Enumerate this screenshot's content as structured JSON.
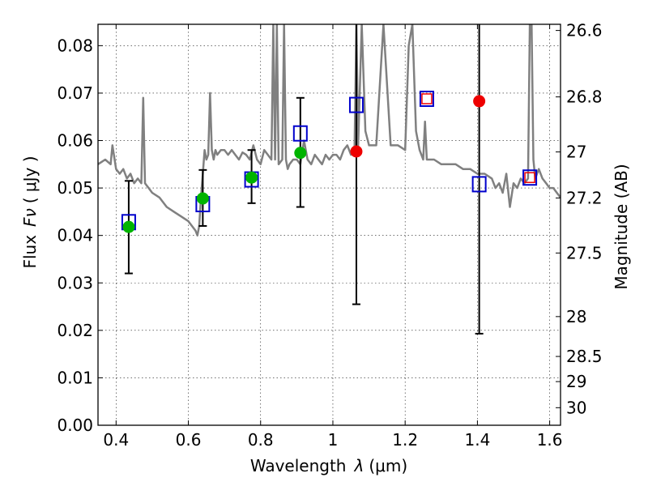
{
  "chart_data": {
    "type": "scatter",
    "title": "",
    "xlabel_text": "Wavelength",
    "xlabel_symbol": "λ",
    "xlabel_unit": "(μm)",
    "ylabel_text": "Flux",
    "ylabel_symbol": "Fν",
    "ylabel_unit": "( μJy )",
    "y2label": "Magnitude (AB)",
    "xlim": [
      0.35,
      1.63
    ],
    "ylim": [
      0.0,
      0.0845
    ],
    "grid": true,
    "xticks": [
      {
        "v": 0.4,
        "label": "0.4"
      },
      {
        "v": 0.6,
        "label": "0.6"
      },
      {
        "v": 0.8,
        "label": "0.8"
      },
      {
        "v": 1.0,
        "label": "1"
      },
      {
        "v": 1.2,
        "label": "1.2"
      },
      {
        "v": 1.4,
        "label": "1.4"
      },
      {
        "v": 1.6,
        "label": "1.6"
      }
    ],
    "yticks": [
      {
        "v": 0.0,
        "label": "0.00"
      },
      {
        "v": 0.01,
        "label": "0.01"
      },
      {
        "v": 0.02,
        "label": "0.02"
      },
      {
        "v": 0.03,
        "label": "0.03"
      },
      {
        "v": 0.04,
        "label": "0.04"
      },
      {
        "v": 0.05,
        "label": "0.05"
      },
      {
        "v": 0.06,
        "label": "0.06"
      },
      {
        "v": 0.07,
        "label": "0.07"
      },
      {
        "v": 0.08,
        "label": "0.08"
      }
    ],
    "y2ticks": [
      {
        "flux": 0.0832,
        "label": "26.6"
      },
      {
        "flux": 0.0692,
        "label": "26.8"
      },
      {
        "flux": 0.0576,
        "label": "27"
      },
      {
        "flux": 0.0479,
        "label": "27.2"
      },
      {
        "flux": 0.0363,
        "label": "27.5"
      },
      {
        "flux": 0.0229,
        "label": "28"
      },
      {
        "flux": 0.0145,
        "label": "28.5"
      },
      {
        "flux": 0.0092,
        "label": "29"
      },
      {
        "flux": 0.0037,
        "label": "30"
      }
    ],
    "series": [
      {
        "kind": "spectrum",
        "color": "#808080",
        "x": [
          0.35,
          0.37,
          0.385,
          0.39,
          0.4,
          0.41,
          0.42,
          0.43,
          0.44,
          0.45,
          0.46,
          0.47,
          0.475,
          0.48,
          0.49,
          0.5,
          0.52,
          0.54,
          0.56,
          0.58,
          0.6,
          0.61,
          0.62,
          0.625,
          0.63,
          0.635,
          0.64,
          0.645,
          0.65,
          0.655,
          0.66,
          0.665,
          0.67,
          0.675,
          0.68,
          0.69,
          0.7,
          0.71,
          0.72,
          0.73,
          0.74,
          0.75,
          0.76,
          0.77,
          0.78,
          0.79,
          0.8,
          0.81,
          0.82,
          0.83,
          0.835,
          0.84,
          0.845,
          0.85,
          0.86,
          0.865,
          0.87,
          0.875,
          0.88,
          0.89,
          0.9,
          0.91,
          0.92,
          0.93,
          0.94,
          0.95,
          0.96,
          0.97,
          0.98,
          0.99,
          1.0,
          1.01,
          1.02,
          1.03,
          1.04,
          1.05,
          1.06,
          1.065,
          1.07,
          1.08,
          1.09,
          1.1,
          1.12,
          1.14,
          1.16,
          1.18,
          1.2,
          1.21,
          1.22,
          1.23,
          1.24,
          1.25,
          1.255,
          1.26,
          1.27,
          1.28,
          1.3,
          1.32,
          1.34,
          1.36,
          1.38,
          1.4,
          1.42,
          1.44,
          1.45,
          1.46,
          1.47,
          1.48,
          1.49,
          1.5,
          1.51,
          1.52,
          1.53,
          1.54,
          1.545,
          1.55,
          1.555,
          1.56,
          1.57,
          1.58,
          1.59,
          1.6,
          1.61,
          1.62,
          1.63
        ],
        "y": [
          0.055,
          0.056,
          0.055,
          0.059,
          0.054,
          0.053,
          0.054,
          0.052,
          0.053,
          0.051,
          0.052,
          0.051,
          0.069,
          0.051,
          0.05,
          0.049,
          0.048,
          0.046,
          0.045,
          0.044,
          0.043,
          0.042,
          0.041,
          0.04,
          0.042,
          0.048,
          0.053,
          0.058,
          0.056,
          0.057,
          0.07,
          0.058,
          0.056,
          0.058,
          0.057,
          0.058,
          0.058,
          0.057,
          0.058,
          0.057,
          0.056,
          0.0575,
          0.057,
          0.056,
          0.059,
          0.056,
          0.055,
          0.058,
          0.057,
          0.056,
          0.0845,
          0.056,
          0.0845,
          0.055,
          0.056,
          0.0845,
          0.056,
          0.054,
          0.055,
          0.056,
          0.056,
          0.055,
          0.06,
          0.056,
          0.055,
          0.057,
          0.056,
          0.055,
          0.057,
          0.056,
          0.057,
          0.057,
          0.056,
          0.058,
          0.059,
          0.057,
          0.058,
          0.0845,
          0.059,
          0.0845,
          0.062,
          0.059,
          0.059,
          0.0845,
          0.059,
          0.059,
          0.058,
          0.08,
          0.0845,
          0.062,
          0.058,
          0.056,
          0.064,
          0.056,
          0.056,
          0.056,
          0.055,
          0.055,
          0.055,
          0.054,
          0.054,
          0.053,
          0.053,
          0.052,
          0.05,
          0.051,
          0.049,
          0.053,
          0.046,
          0.051,
          0.05,
          0.052,
          0.051,
          0.052,
          0.0845,
          0.0845,
          0.056,
          0.052,
          0.054,
          0.052,
          0.051,
          0.05,
          0.05,
          0.049,
          0.048
        ]
      },
      {
        "kind": "model-photometry",
        "marker": "open-square",
        "color": "#0000cc",
        "x": [
          0.435,
          0.64,
          0.775,
          0.91,
          1.065,
          1.26,
          1.405,
          1.545
        ],
        "y": [
          0.0428,
          0.0466,
          0.0518,
          0.0615,
          0.0675,
          0.0688,
          0.0508,
          0.0522
        ]
      },
      {
        "kind": "observed-detection",
        "marker": "filled-circle",
        "color": "#00b400",
        "x": [
          0.435,
          0.64,
          0.775,
          0.91
        ],
        "y": [
          0.0418,
          0.0478,
          0.0522,
          0.0574
        ],
        "yerr_low": [
          0.032,
          0.042,
          0.0468,
          0.046
        ],
        "yerr_high": [
          0.0515,
          0.0538,
          0.058,
          0.069
        ]
      },
      {
        "kind": "observed-other",
        "marker": "filled-circle",
        "color": "#ee0000",
        "x": [
          1.065,
          1.405
        ],
        "y": [
          0.0577,
          0.0683
        ],
        "yerr_low": [
          0.0255,
          0.0193
        ],
        "yerr_high": [
          0.0845,
          0.0845
        ]
      },
      {
        "kind": "observed-small",
        "marker": "small-open-square",
        "color": "#ee0000",
        "x": [
          1.26,
          1.545
        ],
        "y": [
          0.0688,
          0.0522
        ]
      }
    ]
  }
}
